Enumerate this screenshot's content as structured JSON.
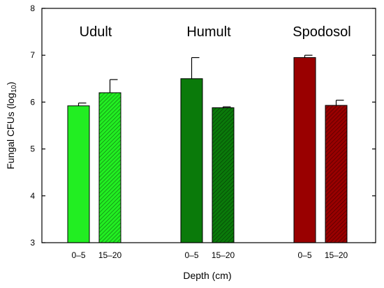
{
  "chart_data": {
    "type": "bar",
    "xlabel": "Depth (cm)",
    "ylabel": {
      "main": "Fungal CFUs (log",
      "sub": "10",
      "close": ")"
    },
    "ylim": [
      3,
      8
    ],
    "yticks": [
      3,
      4,
      5,
      6,
      7,
      8
    ],
    "grid": false,
    "groups": [
      {
        "name": "Udult",
        "bars": [
          {
            "depth": "0–5",
            "value": 5.92,
            "error": 0.06,
            "color": "#22ee22",
            "hatched": false
          },
          {
            "depth": "15–20",
            "value": 6.2,
            "error": 0.28,
            "color": "#22ee22",
            "hatched": true
          }
        ]
      },
      {
        "name": "Humult",
        "bars": [
          {
            "depth": "0–5",
            "value": 6.5,
            "error": 0.45,
            "color": "#0a7a0a",
            "hatched": false
          },
          {
            "depth": "15–20",
            "value": 5.88,
            "error": 0.02,
            "color": "#0a7a0a",
            "hatched": true
          }
        ]
      },
      {
        "name": "Spodosol",
        "bars": [
          {
            "depth": "0–5",
            "value": 6.95,
            "error": 0.05,
            "color": "#990000",
            "hatched": false
          },
          {
            "depth": "15–20",
            "value": 5.93,
            "error": 0.11,
            "color": "#990000",
            "hatched": true
          }
        ]
      }
    ]
  }
}
